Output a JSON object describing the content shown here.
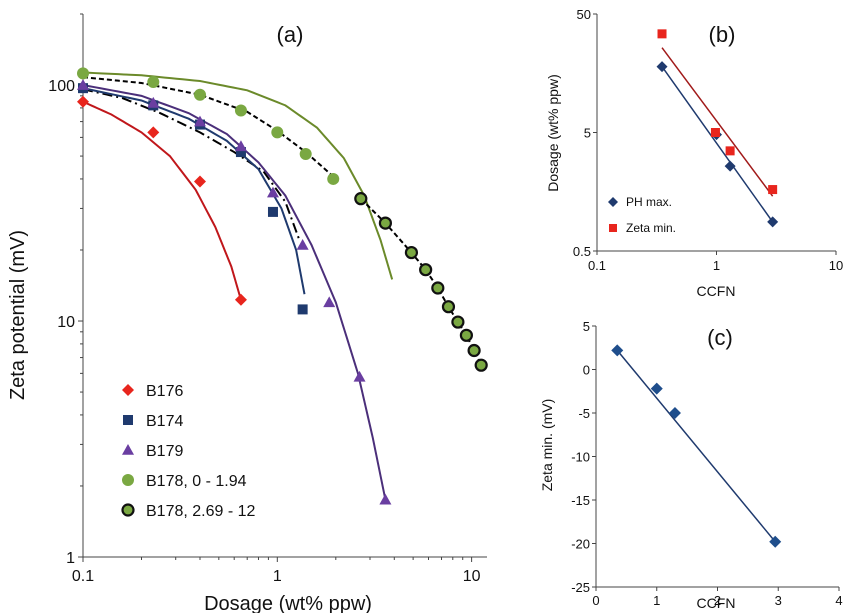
{
  "chart_data": [
    {
      "panel": "(a)",
      "type": "scatter",
      "xlabel": "Dosage (wt% ppw)",
      "ylabel": "Zeta potential (mV)",
      "xscale": "log",
      "yscale": "log",
      "xlim": [
        0.1,
        12
      ],
      "ylim": [
        1,
        200
      ],
      "xticks": [
        "0.1",
        "1",
        "10"
      ],
      "yticks": [
        "1",
        "10",
        "100"
      ],
      "legend_position": "bottom-left",
      "series": [
        {
          "name": "B176",
          "marker": "diamond",
          "color": "#e8251d",
          "x": [
            0.1,
            0.23,
            0.4,
            0.65
          ],
          "y": [
            85,
            63,
            39,
            12.3
          ],
          "fit": {
            "color": "#c0171b",
            "style": "solid",
            "x": [
              0.1,
              0.14,
              0.2,
              0.28,
              0.38,
              0.48,
              0.58,
              0.65
            ],
            "y": [
              85,
              75,
              63,
              50,
              36,
              25,
              17,
              12.3
            ]
          },
          "fit2": {
            "color": "#000000",
            "style": "dashdot",
            "x": [
              0.1,
              0.16,
              0.25,
              0.4,
              0.6,
              0.85,
              1.1,
              1.3
            ],
            "y": [
              96,
              88,
              76,
              63,
              52,
              43,
              32,
              22
            ]
          }
        },
        {
          "name": "B174",
          "marker": "square",
          "color": "#1f3a6e",
          "x": [
            0.1,
            0.23,
            0.4,
            0.65,
            0.95,
            1.35
          ],
          "y": [
            97,
            82,
            68,
            52,
            29,
            11.2
          ],
          "fit": {
            "color": "#1f3a6e",
            "style": "solid",
            "x": [
              0.1,
              0.2,
              0.35,
              0.55,
              0.8,
              1.05,
              1.25,
              1.38
            ],
            "y": [
              97,
              86,
              72,
              58,
              44,
              30,
              20,
              13
            ]
          }
        },
        {
          "name": "B179",
          "marker": "triangle",
          "color": "#6a3ea1",
          "x": [
            0.1,
            0.23,
            0.4,
            0.65,
            0.95,
            1.35,
            1.85,
            2.65,
            3.6
          ],
          "y": [
            100,
            84,
            70,
            55,
            35,
            21,
            12,
            5.8,
            1.75
          ],
          "fit": {
            "color": "#4b2f7a",
            "style": "solid",
            "x": [
              0.1,
              0.2,
              0.35,
              0.55,
              0.8,
              1.1,
              1.5,
              2.0,
              2.6,
              3.1,
              3.6
            ],
            "y": [
              100,
              90,
              76,
              62,
              47,
              34,
              21,
              12,
              6,
              3.2,
              1.75
            ]
          }
        },
        {
          "name": "B178, 0 - 1.94",
          "marker": "circle",
          "color": "#7aa842",
          "x": [
            0.1,
            0.23,
            0.4,
            0.65,
            1.0,
            1.4,
            1.94
          ],
          "y": [
            112,
            103,
            91,
            78,
            63,
            51,
            40
          ],
          "fit": {
            "color": "#6b8a2a",
            "style": "solid",
            "x": [
              0.1,
              0.2,
              0.4,
              0.7,
              1.1,
              1.6,
              2.2,
              2.8,
              3.4,
              3.9
            ],
            "y": [
              113,
              110,
              104,
              95,
              82,
              66,
              49,
              34,
              22,
              15
            ]
          },
          "fit2": {
            "color": "#000000",
            "style": "dashed",
            "x": [
              0.1,
              0.2,
              0.4,
              0.7,
              1.0,
              1.4,
              1.94
            ],
            "y": [
              108,
              102,
              91,
              77,
              64,
              52,
              41
            ]
          }
        },
        {
          "name": "B178, 2.69 - 12",
          "marker": "circle-ringed",
          "color": "#7aa842",
          "x": [
            2.69,
            3.6,
            4.9,
            5.8,
            6.7,
            7.6,
            8.5,
            9.4,
            10.3,
            11.2
          ],
          "y": [
            33,
            26,
            19.5,
            16.5,
            13.8,
            11.5,
            9.9,
            8.7,
            7.5,
            6.5
          ],
          "fit": {
            "color": "#000000",
            "style": "dashed",
            "x": [
              2.69,
              3.6,
              4.9,
              5.8,
              6.7,
              7.6,
              8.5,
              9.4,
              10.3,
              11.2
            ],
            "y": [
              33,
              26,
              19.5,
              16.5,
              13.8,
              11.5,
              9.9,
              8.7,
              7.5,
              6.5
            ]
          }
        }
      ]
    },
    {
      "panel": "(b)",
      "type": "scatter",
      "xlabel": "CCFN",
      "ylabel": "Dosage (wt%  ppw)",
      "xscale": "log",
      "yscale": "log",
      "xlim": [
        0.1,
        10
      ],
      "ylim": [
        0.5,
        50
      ],
      "xticks": [
        "0.1",
        "1",
        "10"
      ],
      "yticks": [
        "0.5",
        "5",
        "50"
      ],
      "legend_position": "bottom-left",
      "series": [
        {
          "name": "PH max.",
          "marker": "diamond",
          "color": "#1f3a6e",
          "x": [
            0.35,
            1.0,
            1.3,
            2.95
          ],
          "y": [
            18,
            4.8,
            2.6,
            0.88
          ],
          "fit": {
            "color": "#1f3a6e",
            "x": [
              0.35,
              2.95
            ],
            "y": [
              18,
              0.88
            ]
          }
        },
        {
          "name": "Zeta min.",
          "marker": "square",
          "color": "#e8251d",
          "x": [
            0.35,
            0.98,
            1.3,
            2.95
          ],
          "y": [
            34,
            5,
            3.5,
            1.65
          ],
          "fit": {
            "color": "#a11a1a",
            "x": [
              0.35,
              2.95
            ],
            "y": [
              26,
              1.45
            ]
          }
        }
      ]
    },
    {
      "panel": "(c)",
      "type": "scatter",
      "xlabel": "CCFN",
      "ylabel": "Zeta min. (mV)",
      "xlim": [
        0,
        4
      ],
      "ylim": [
        -25,
        5
      ],
      "xticks": [
        "0",
        "1",
        "2",
        "3",
        "4"
      ],
      "yticks": [
        "-25",
        "-20",
        "-15",
        "-10",
        "-5",
        "0",
        "5"
      ],
      "series": [
        {
          "marker": "diamond",
          "color": "#1f4e8c",
          "x": [
            0.35,
            1.0,
            1.3,
            2.95
          ],
          "y": [
            2.2,
            -2.2,
            -5.0,
            -19.8
          ],
          "fit": {
            "color": "#1f3a6e",
            "x": [
              0.35,
              2.95
            ],
            "y": [
              2.2,
              -19.8
            ]
          }
        }
      ]
    }
  ]
}
